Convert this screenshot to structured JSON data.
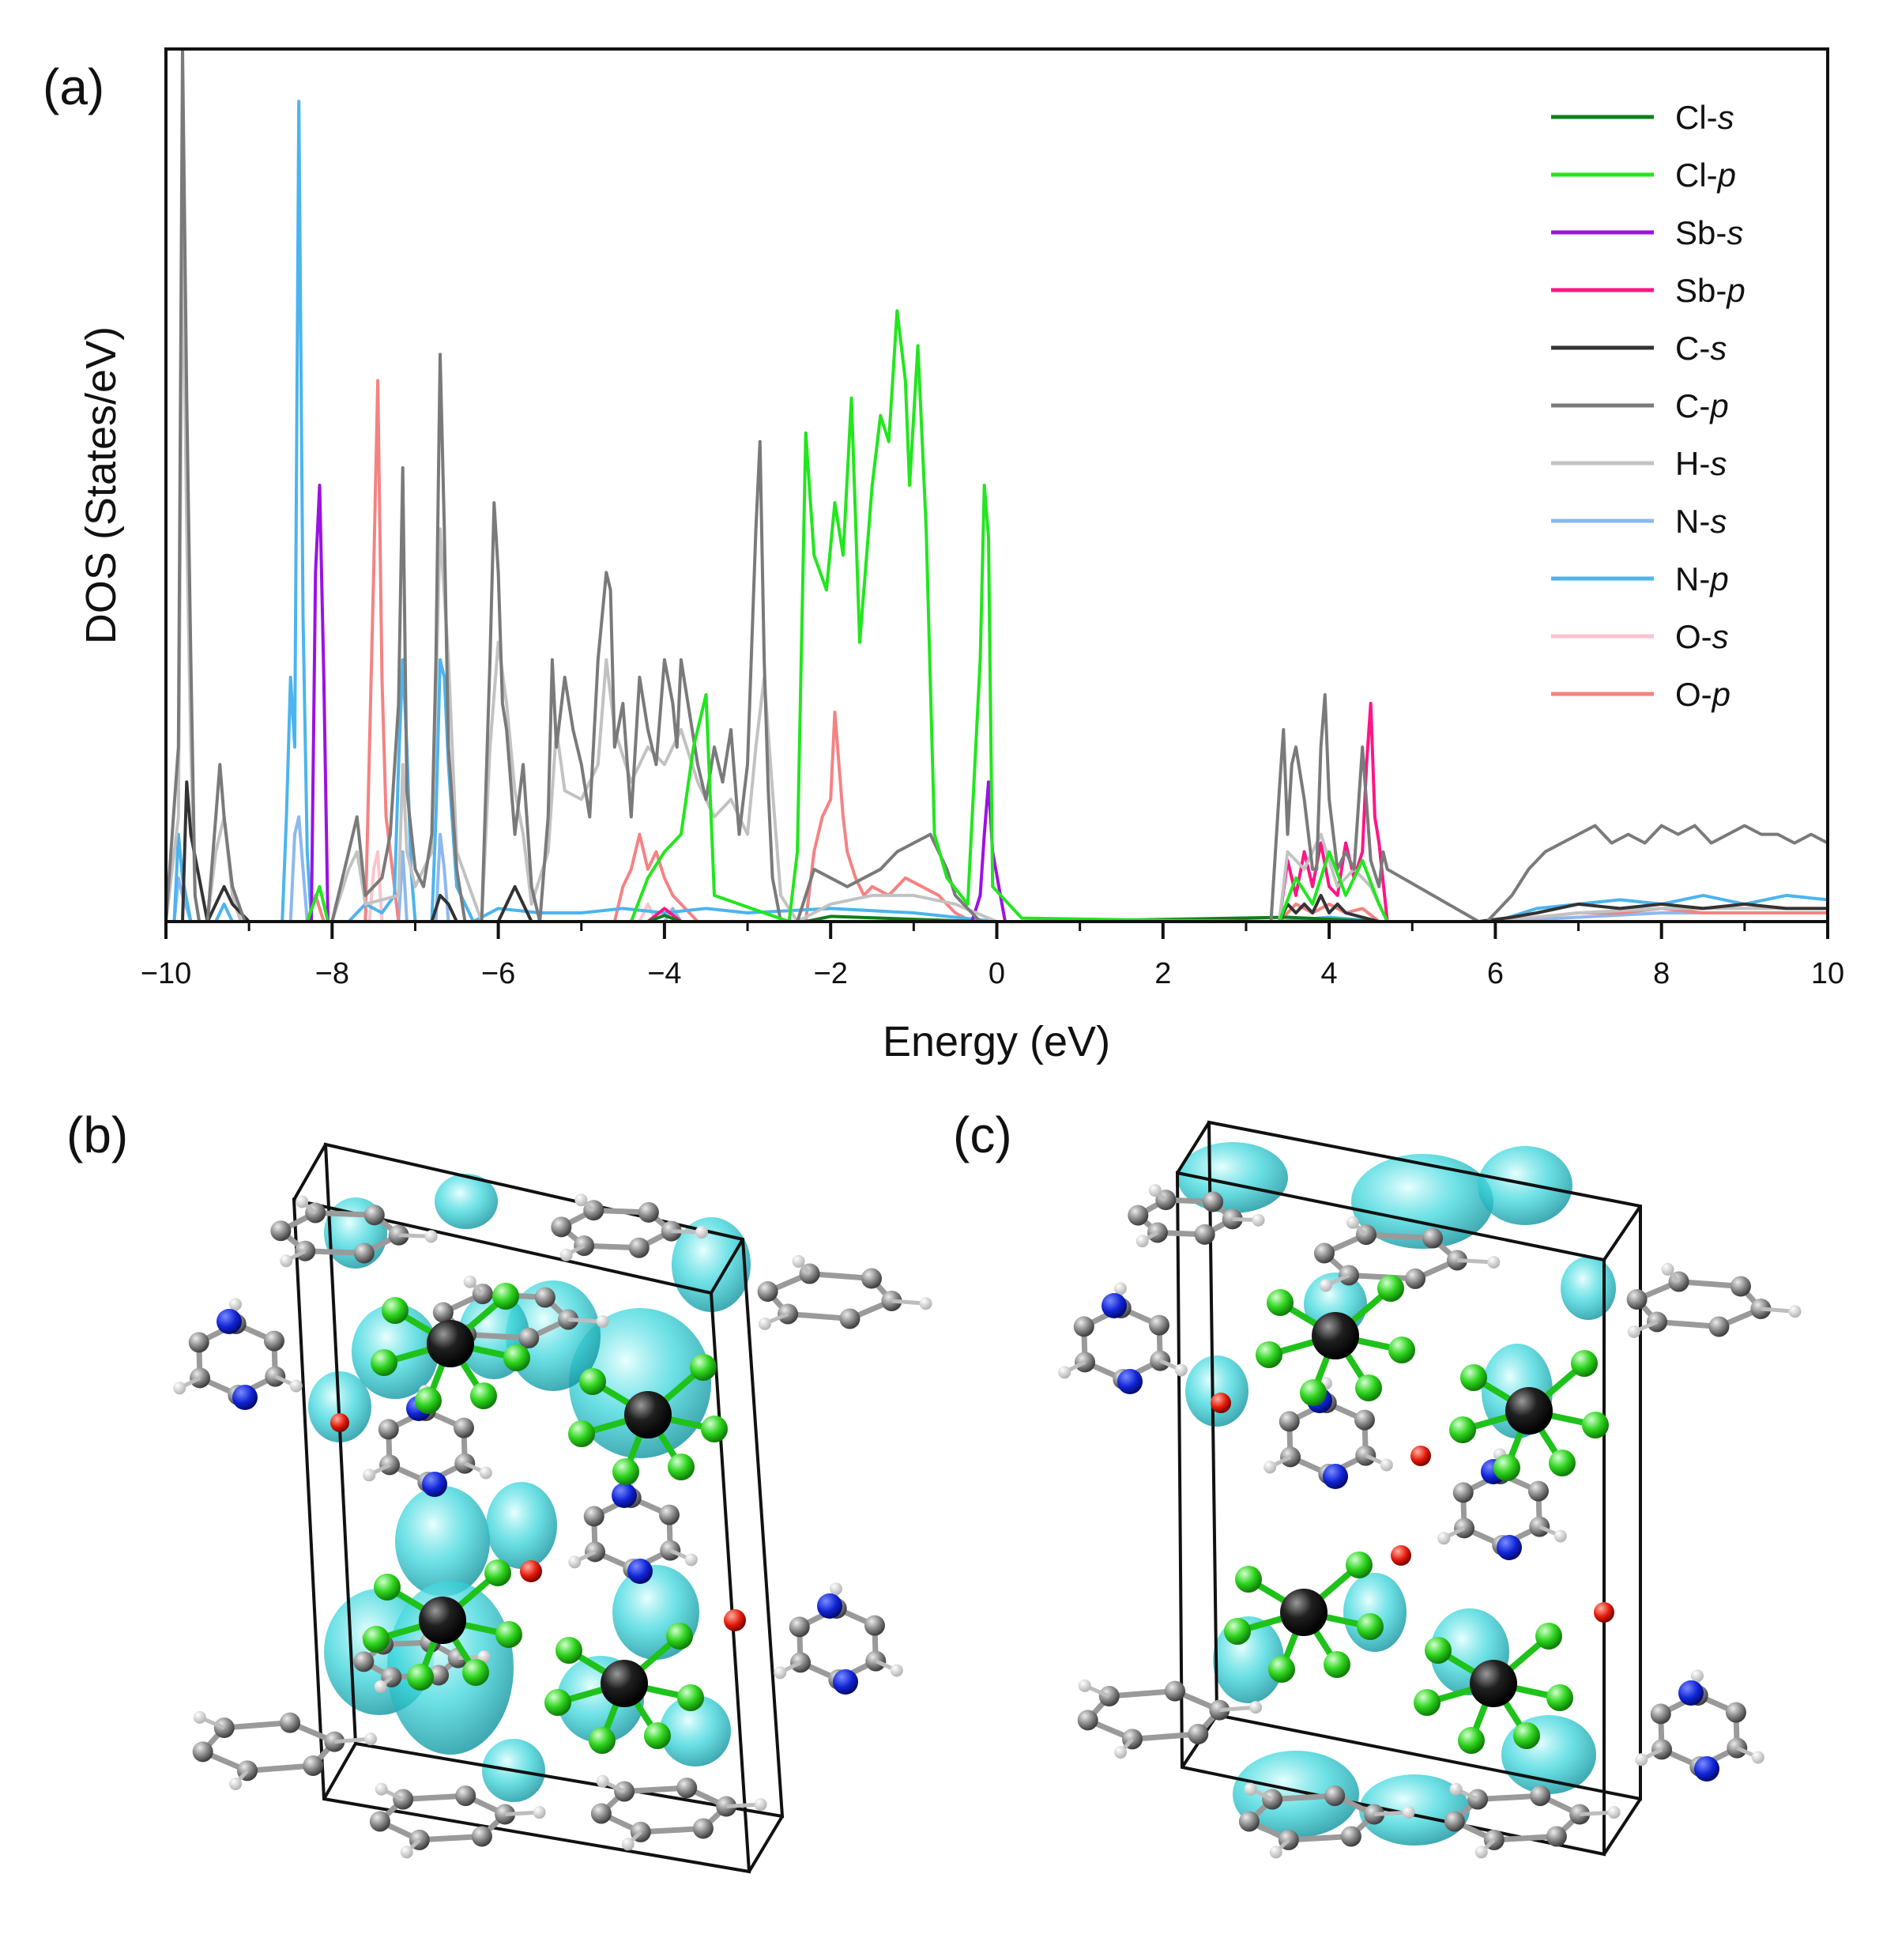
{
  "panels": {
    "a": "(a)",
    "b": "(b)",
    "c": "(c)"
  },
  "chart_data": {
    "type": "line",
    "title": "",
    "xlabel": "Energy (eV)",
    "ylabel": "DOS (States/eV)",
    "xlim": [
      -10,
      10
    ],
    "ylim": [
      0,
      100
    ],
    "xticks": [
      -10,
      -8,
      -6,
      -4,
      -2,
      0,
      2,
      4,
      6,
      8,
      10
    ],
    "xtick_labels": [
      "−10",
      "−8",
      "−6",
      "−4",
      "−2",
      "0",
      "2",
      "4",
      "6",
      "8",
      "10"
    ],
    "legend_position": "top-right",
    "series": [
      {
        "name": "Cl-s",
        "element": "Cl",
        "orbital": "s",
        "color": "#0f7f1a",
        "x": [
          -10,
          -4.2,
          -4.0,
          -3.8,
          -2.3,
          -2.0,
          -0.2,
          0.5,
          3.5,
          4.6,
          10
        ],
        "y": [
          0,
          0,
          0.7,
          0,
          0,
          0.6,
          0,
          0,
          0.5,
          0,
          0
        ]
      },
      {
        "name": "Cl-p",
        "element": "Cl",
        "orbital": "p",
        "color": "#22e61e",
        "x": [
          -10,
          -8.3,
          -8.15,
          -8.05,
          -4.4,
          -4.2,
          -4.0,
          -3.8,
          -3.65,
          -3.5,
          -3.4,
          -2.5,
          -2.4,
          -2.3,
          -2.2,
          -2.05,
          -1.95,
          -1.85,
          -1.75,
          -1.65,
          -1.5,
          -1.4,
          -1.3,
          -1.2,
          -1.1,
          -1.05,
          -0.95,
          -0.85,
          -0.75,
          -0.6,
          -0.35,
          -0.2,
          -0.15,
          -0.1,
          -0.05,
          0.3,
          1.6,
          3.4,
          3.6,
          3.8,
          4.0,
          4.2,
          4.4,
          4.6,
          4.7,
          10
        ],
        "y": [
          0,
          0,
          4,
          0,
          0,
          5,
          8,
          10,
          20,
          26,
          3,
          0,
          8,
          56,
          42,
          38,
          48,
          42,
          60,
          32,
          50,
          58,
          55,
          70,
          62,
          50,
          66,
          45,
          10,
          5,
          2,
          30,
          50,
          44,
          4,
          0.4,
          0.2,
          0,
          5,
          2,
          8,
          3,
          7,
          2,
          0,
          0
        ]
      },
      {
        "name": "Sb-s",
        "element": "Sb",
        "orbital": "s",
        "color": "#9a12e3",
        "x": [
          -10,
          -8.25,
          -8.2,
          -8.15,
          -8.1,
          -8.05,
          -0.3,
          -0.2,
          -0.15,
          -0.1,
          -0.05,
          0.1,
          10
        ],
        "y": [
          0,
          0,
          40,
          50,
          28,
          0,
          0,
          3,
          10,
          16,
          8,
          0,
          0
        ]
      },
      {
        "name": "Sb-p",
        "element": "Sb",
        "orbital": "p",
        "color": "#ff1585",
        "x": [
          -10,
          -4.2,
          -4.0,
          -3.8,
          3.4,
          3.5,
          3.6,
          3.7,
          3.8,
          3.9,
          4.0,
          4.1,
          4.2,
          4.3,
          4.4,
          4.45,
          4.5,
          4.55,
          4.6,
          4.7,
          10
        ],
        "y": [
          0,
          0,
          1.5,
          0,
          0,
          7,
          3,
          8,
          4,
          9,
          4,
          3,
          9,
          5,
          8,
          18,
          25,
          12,
          9,
          0,
          0
        ]
      },
      {
        "name": "C-s",
        "element": "C",
        "orbital": "s",
        "color": "#333333",
        "x": [
          -10,
          -9.8,
          -9.75,
          -9.7,
          -9.5,
          -9.3,
          -9.2,
          -9.0,
          -6.8,
          -6.7,
          -6.6,
          -6.5,
          -6.0,
          -5.8,
          -5.7,
          -5.6,
          3.4,
          3.5,
          3.6,
          3.7,
          3.8,
          3.9,
          4.0,
          4.1,
          4.2,
          4.6,
          5.8,
          6.2,
          6.5,
          7.0,
          7.5,
          8.0,
          8.5,
          9.0,
          9.5,
          10
        ],
        "y": [
          0,
          0,
          16,
          10,
          0,
          4,
          2,
          0,
          0,
          3,
          2,
          0,
          0,
          4,
          2,
          0,
          0,
          2,
          1,
          2,
          1,
          3,
          1,
          2,
          1,
          0,
          0,
          0.5,
          1,
          2,
          1.5,
          2,
          1.5,
          2,
          1.5,
          1.5
        ]
      },
      {
        "name": "C-p",
        "element": "C",
        "orbital": "p",
        "color": "#7a7a7a",
        "x": [
          -10,
          -9.85,
          -9.8,
          -9.75,
          -9.7,
          -9.65,
          -9.6,
          -9.5,
          -9.4,
          -9.35,
          -9.3,
          -9.2,
          -9.05,
          -8.0,
          -7.9,
          -7.8,
          -7.7,
          -7.6,
          -7.4,
          -7.3,
          -7.2,
          -7.15,
          -7.1,
          -7.0,
          -6.9,
          -6.8,
          -6.75,
          -6.7,
          -6.65,
          -6.6,
          -6.5,
          -6.4,
          -6.2,
          -6.1,
          -6.05,
          -6.0,
          -5.95,
          -5.9,
          -5.8,
          -5.7,
          -5.6,
          -5.5,
          -5.4,
          -5.35,
          -5.3,
          -5.2,
          -5.1,
          -5.0,
          -4.9,
          -4.8,
          -4.7,
          -4.65,
          -4.6,
          -4.5,
          -4.4,
          -4.3,
          -4.2,
          -4.1,
          -4.0,
          -3.9,
          -3.85,
          -3.8,
          -3.7,
          -3.6,
          -3.5,
          -3.4,
          -3.3,
          -3.2,
          -3.1,
          -3.0,
          -2.9,
          -2.85,
          -2.8,
          -2.75,
          -2.7,
          -2.6,
          -2.5,
          -2.4,
          -2.3,
          -2.2,
          -2.0,
          -1.8,
          -1.6,
          -1.4,
          -1.2,
          -1.0,
          -0.8,
          -0.6,
          -0.5,
          -0.4,
          -0.3,
          -0.2,
          -0.1,
          0.0,
          3.3,
          3.4,
          3.45,
          3.5,
          3.55,
          3.6,
          3.7,
          3.8,
          3.85,
          3.9,
          3.95,
          4.0,
          4.1,
          4.2,
          4.3,
          4.4,
          4.5,
          4.6,
          4.65,
          4.7,
          5.8,
          5.9,
          6.0,
          6.2,
          6.4,
          6.6,
          6.8,
          7.0,
          7.2,
          7.4,
          7.6,
          7.8,
          8.0,
          8.2,
          8.4,
          8.6,
          8.8,
          9.0,
          9.2,
          9.4,
          9.6,
          9.8,
          10.0
        ],
        "y": [
          0,
          20,
          100,
          60,
          30,
          3,
          0,
          0,
          12,
          18,
          12,
          4,
          0,
          0,
          4,
          8,
          12,
          3,
          5,
          10,
          25,
          52,
          15,
          6,
          4,
          10,
          30,
          65,
          45,
          20,
          6,
          0,
          0,
          30,
          48,
          40,
          25,
          22,
          10,
          18,
          4,
          0,
          12,
          30,
          20,
          28,
          22,
          18,
          12,
          30,
          40,
          38,
          20,
          25,
          12,
          28,
          22,
          18,
          30,
          25,
          20,
          30,
          24,
          18,
          14,
          20,
          16,
          22,
          10,
          18,
          45,
          55,
          30,
          15,
          5,
          0,
          0,
          0,
          3,
          6,
          5,
          4,
          5,
          6,
          8,
          9,
          10,
          6,
          3,
          2,
          1,
          0,
          0,
          0,
          0,
          15,
          22,
          10,
          18,
          20,
          14,
          6,
          6,
          20,
          26,
          14,
          6,
          8,
          6,
          20,
          7,
          4,
          8,
          6,
          0,
          0,
          1,
          3,
          6,
          8,
          9,
          10,
          11,
          9,
          10,
          9,
          11,
          10,
          11,
          9,
          10,
          11,
          10,
          10,
          9,
          10,
          9
        ]
      },
      {
        "name": "H-s",
        "element": "H",
        "orbital": "s",
        "color": "#c2c2c2",
        "x": [
          -10,
          -9.85,
          -9.8,
          -9.75,
          -9.7,
          -9.65,
          -9.6,
          -9.5,
          -9.4,
          -9.3,
          -9.2,
          -9.1,
          -8.0,
          -7.9,
          -7.8,
          -7.7,
          -7.6,
          -7.2,
          -7.15,
          -7.1,
          -7.0,
          -6.8,
          -6.7,
          -6.6,
          -6.5,
          -6.2,
          -6.1,
          -6.0,
          -5.9,
          -5.8,
          -5.7,
          -5.6,
          -5.4,
          -5.3,
          -5.2,
          -5.0,
          -4.8,
          -4.7,
          -4.6,
          -4.4,
          -4.2,
          -4.0,
          -3.8,
          -3.6,
          -3.4,
          -3.2,
          -3.0,
          -2.9,
          -2.8,
          -2.7,
          -2.6,
          -2.4,
          -2.0,
          -1.5,
          -1.0,
          -0.5,
          0,
          3.4,
          3.5,
          3.7,
          3.9,
          4.1,
          4.3,
          4.5,
          4.7,
          6.0,
          7.0,
          8.0,
          9.0,
          10
        ],
        "y": [
          0,
          12,
          82,
          45,
          20,
          3,
          0,
          0,
          8,
          12,
          3,
          0,
          0,
          3,
          6,
          8,
          2,
          3,
          18,
          8,
          4,
          8,
          45,
          30,
          8,
          0,
          20,
          32,
          25,
          15,
          10,
          2,
          8,
          22,
          15,
          14,
          18,
          30,
          22,
          16,
          20,
          18,
          22,
          16,
          12,
          14,
          10,
          20,
          28,
          15,
          3,
          0,
          2,
          3,
          3,
          2,
          0,
          0,
          8,
          6,
          10,
          4,
          6,
          4,
          0,
          0,
          1,
          1.5,
          1.5,
          1.5
        ]
      },
      {
        "name": "N-s",
        "element": "N",
        "orbital": "s",
        "color": "#8cb8f0",
        "x": [
          -10,
          -9.9,
          -9.85,
          -9.8,
          -9.7,
          -8.5,
          -8.45,
          -8.4,
          -8.35,
          -8.3,
          -7.2,
          -7.15,
          -7.1,
          -6.75,
          -6.7,
          -6.65,
          -6.6,
          -4.0,
          -3.9,
          -3.8,
          0,
          6.0,
          8.0,
          10
        ],
        "y": [
          0,
          0,
          5,
          3,
          0,
          0,
          10,
          12,
          6,
          0,
          0,
          8,
          0,
          0,
          10,
          6,
          0,
          0,
          1.5,
          0,
          0,
          0,
          1,
          1
        ]
      },
      {
        "name": "N-p",
        "element": "N",
        "orbital": "p",
        "color": "#4cb4ee",
        "x": [
          -10,
          -9.9,
          -9.85,
          -9.8,
          -9.7,
          -9.4,
          -9.3,
          -9.2,
          -8.6,
          -8.55,
          -8.5,
          -8.45,
          -8.4,
          -8.35,
          -8.3,
          -8.25,
          -7.8,
          -7.6,
          -7.4,
          -7.25,
          -7.2,
          -7.15,
          -7.1,
          -7.05,
          -7.0,
          -6.8,
          -6.75,
          -6.7,
          -6.65,
          -6.6,
          -6.5,
          -6.3,
          -6.0,
          -5.5,
          -5.0,
          -4.5,
          -4.0,
          -3.5,
          -3.0,
          -2.0,
          -1.0,
          0.0,
          3.4,
          4.0,
          4.6,
          6.0,
          6.5,
          7.0,
          7.5,
          8.0,
          8.5,
          9.0,
          9.5,
          10.0
        ],
        "y": [
          0,
          0,
          10,
          5,
          0,
          0,
          2,
          0,
          0,
          12,
          28,
          20,
          94,
          35,
          8,
          0,
          0,
          2,
          1,
          3,
          18,
          30,
          20,
          6,
          0,
          0,
          12,
          30,
          28,
          18,
          4,
          0,
          1.5,
          1,
          1,
          1.5,
          1,
          1.5,
          1,
          1.5,
          1,
          0,
          0,
          0.5,
          0,
          0,
          1.5,
          2,
          2.5,
          2,
          3,
          2,
          3,
          2.5
        ]
      },
      {
        "name": "O-s",
        "element": "O",
        "orbital": "s",
        "color": "#f9c4cc",
        "x": [
          -10,
          -7.55,
          -7.5,
          -7.45,
          -7.4,
          -4.3,
          -4.2,
          -4.1,
          0,
          10
        ],
        "y": [
          0,
          0,
          6,
          8,
          0,
          0,
          2,
          0,
          0,
          0
        ]
      },
      {
        "name": "O-p",
        "element": "O",
        "orbital": "p",
        "color": "#f58282",
        "x": [
          -10,
          -8.3,
          -8.2,
          -8.1,
          -7.6,
          -7.55,
          -7.5,
          -7.45,
          -7.4,
          -7.35,
          -7.3,
          -7.2,
          -4.6,
          -4.5,
          -4.4,
          -4.3,
          -4.2,
          -4.1,
          -4.0,
          -3.9,
          -3.6,
          -2.3,
          -2.2,
          -2.1,
          -2.0,
          -1.95,
          -1.9,
          -1.85,
          -1.8,
          -1.7,
          -1.6,
          -1.5,
          -1.3,
          -1.1,
          -0.9,
          -0.7,
          -0.5,
          -0.3,
          0.0,
          3.4,
          3.6,
          3.8,
          4.0,
          4.2,
          4.4,
          4.6,
          6.0,
          6.5,
          7.0,
          7.5,
          8.0,
          8.5,
          9.0,
          9.5,
          10
        ],
        "y": [
          0,
          0,
          3,
          0,
          0,
          20,
          40,
          62,
          28,
          12,
          8,
          0,
          0,
          4,
          6,
          10,
          6,
          8,
          5,
          3,
          0,
          0,
          8,
          12,
          14,
          24,
          18,
          12,
          8,
          5,
          3,
          4,
          3,
          5,
          4,
          3,
          1,
          0,
          0,
          0,
          2,
          1,
          2,
          1,
          1.5,
          0,
          0,
          0.5,
          1,
          1,
          1.5,
          1,
          1,
          1,
          1
        ]
      }
    ]
  }
}
